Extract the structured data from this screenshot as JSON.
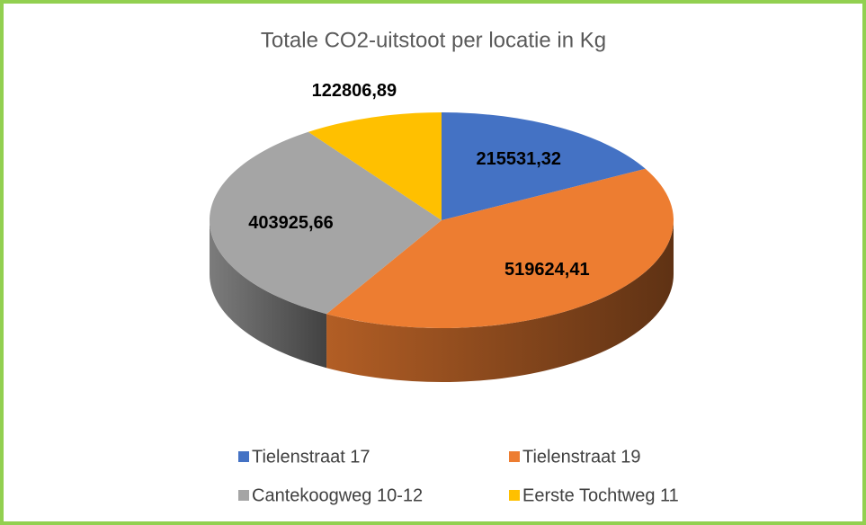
{
  "chart_data": {
    "type": "pie",
    "title": "Totale CO2-uitstoot per locatie in Kg",
    "categories": [
      "Tielenstraat 17",
      "Tielenstraat 19",
      "Cantekoogweg 10-12",
      "Eerste Tochtweg 11"
    ],
    "values": [
      215531.32,
      519624.41,
      403925.66,
      122806.89
    ],
    "value_labels": [
      "215531,32",
      "519624,41",
      "403925,66",
      "122806,89"
    ],
    "colors": [
      "#4472c4",
      "#ed7d31",
      "#a5a5a5",
      "#ffc000"
    ],
    "legend": "bottom"
  }
}
